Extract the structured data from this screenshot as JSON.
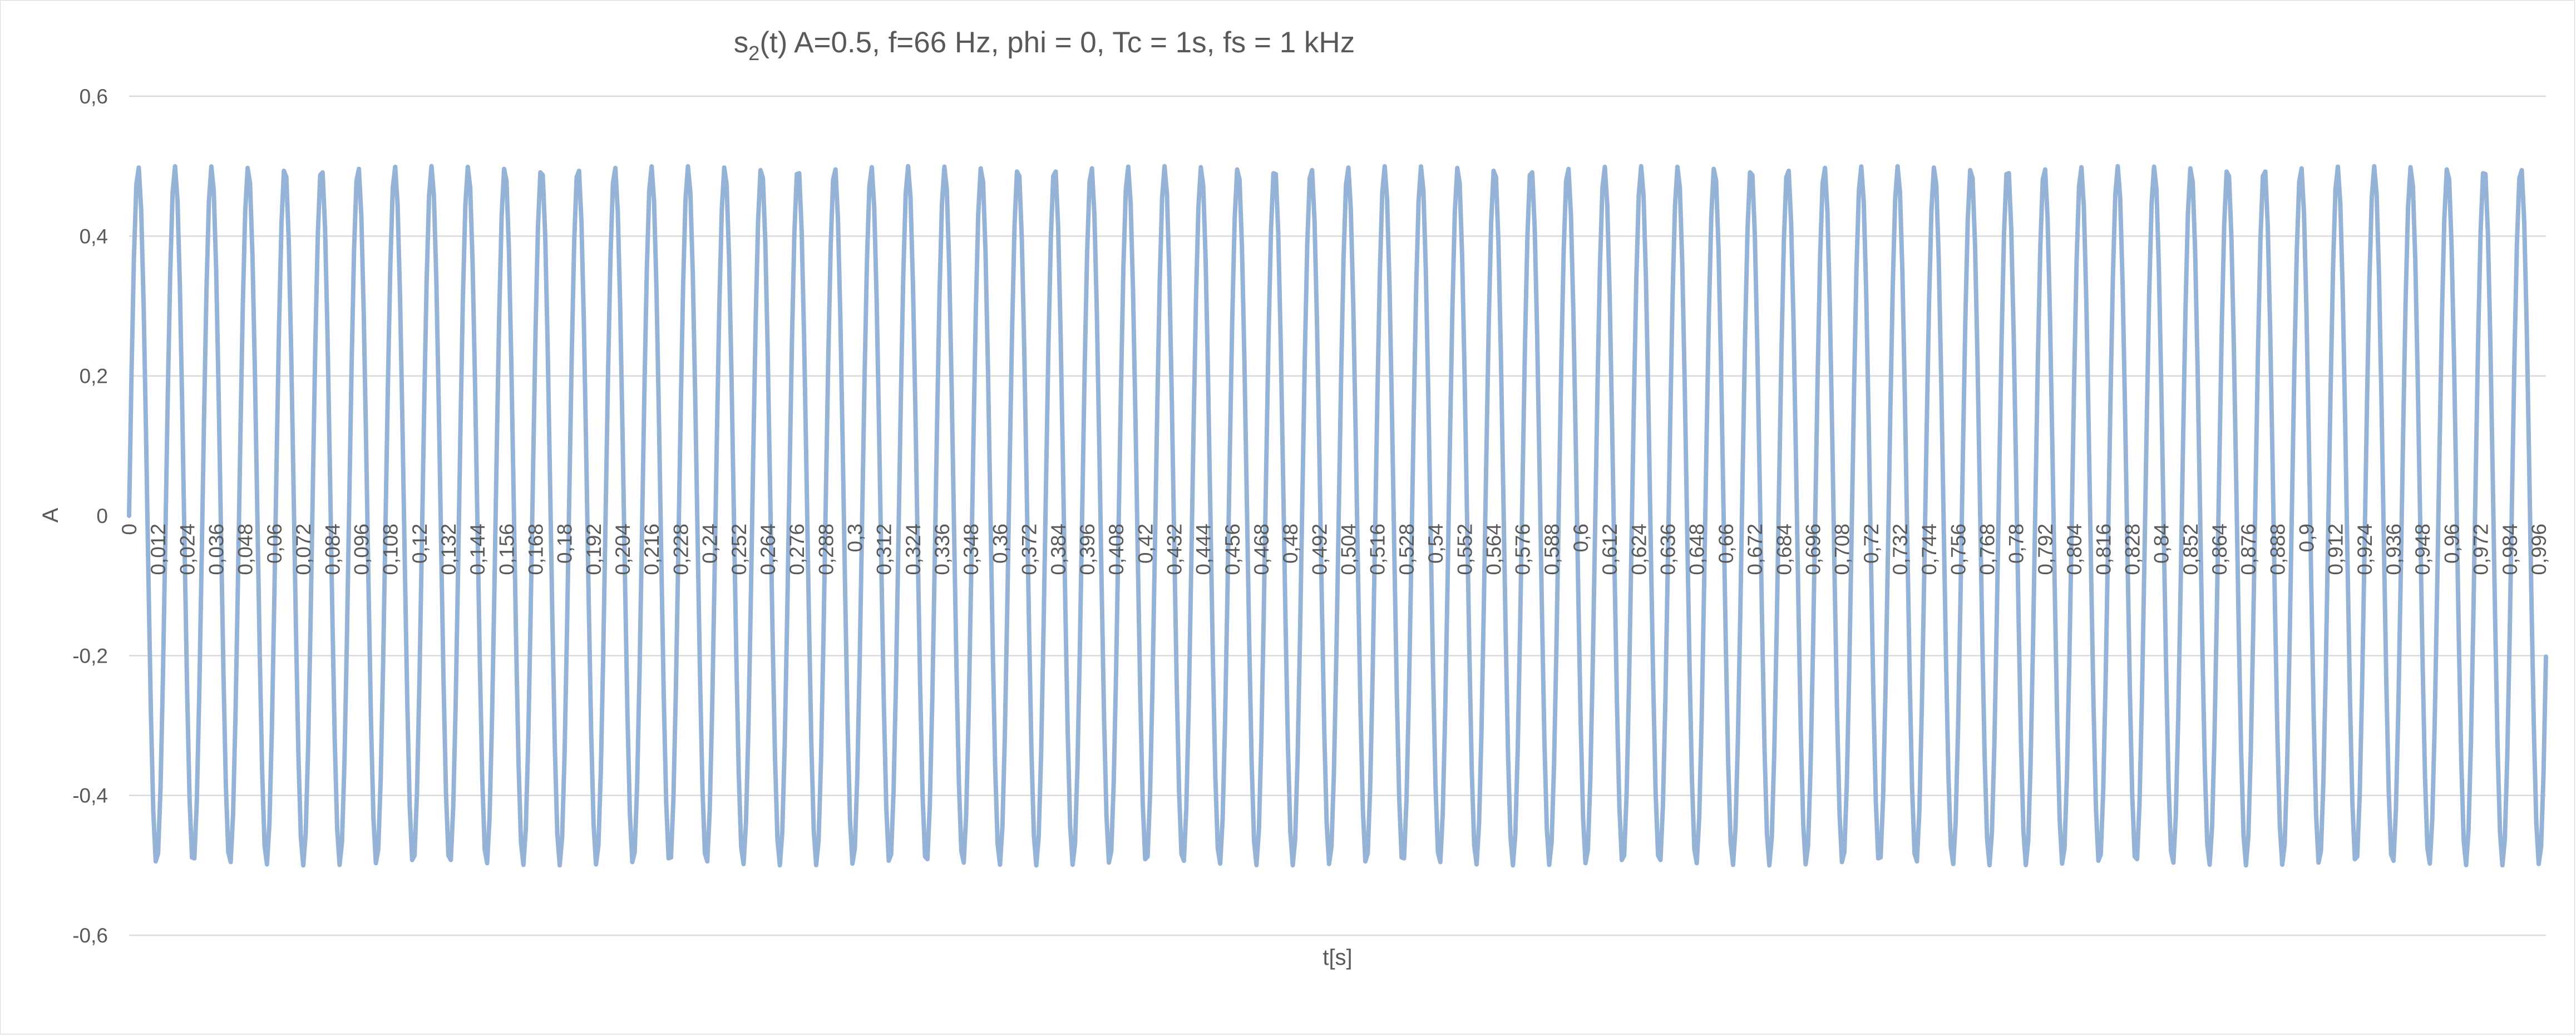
{
  "chart_data": {
    "type": "line",
    "title": {
      "prefix": "s",
      "subscript": "2",
      "suffix": "(t) A=0.5, f=66 Hz, phi = 0, Tc = 1s, fs = 1 kHz"
    },
    "xlabel": "t[s]",
    "ylabel": "A",
    "ylim": [
      -0.6,
      0.6
    ],
    "yticks": [
      0.6,
      0.4,
      0.2,
      0,
      -0.2,
      -0.4,
      -0.6
    ],
    "ytick_labels": [
      "0,6",
      "0,4",
      "0,2",
      "0",
      "-0,2",
      "-0,4",
      "-0,6"
    ],
    "xlim": [
      0,
      0.999
    ],
    "xtick_labels": [
      "0",
      "0,012",
      "0,024",
      "0,036",
      "0,048",
      "0,06",
      "0,072",
      "0,084",
      "0,096",
      "0,108",
      "0,12",
      "0,132",
      "0,144",
      "0,156",
      "0,168",
      "0,18",
      "0,192",
      "0,204",
      "0,216",
      "0,228",
      "0,24",
      "0,252",
      "0,264",
      "0,276",
      "0,288",
      "0,3",
      "0,312",
      "0,324",
      "0,336",
      "0,348",
      "0,36",
      "0,372",
      "0,384",
      "0,396",
      "0,408",
      "0,42",
      "0,432",
      "0,444",
      "0,456",
      "0,468",
      "0,48",
      "0,492",
      "0,504",
      "0,516",
      "0,528",
      "0,54",
      "0,552",
      "0,564",
      "0,576",
      "0,588",
      "0,6",
      "0,612",
      "0,624",
      "0,636",
      "0,648",
      "0,66",
      "0,672",
      "0,684",
      "0,696",
      "0,708",
      "0,72",
      "0,732",
      "0,744",
      "0,756",
      "0,768",
      "0,78",
      "0,792",
      "0,804",
      "0,816",
      "0,828",
      "0,84",
      "0,852",
      "0,864",
      "0,876",
      "0,888",
      "0,9",
      "0,912",
      "0,924",
      "0,936",
      "0,948",
      "0,96",
      "0,972",
      "0,984",
      "0,996"
    ],
    "grid": true,
    "legend": "none",
    "series": [
      {
        "amplitude": 0.5,
        "frequency_hz": 66,
        "phase": 0,
        "duration_s": 1,
        "sample_rate_hz": 1000,
        "x_start": 0,
        "x_step": 0.001,
        "sample_count": 1000,
        "color": "#95b3d7"
      }
    ]
  }
}
